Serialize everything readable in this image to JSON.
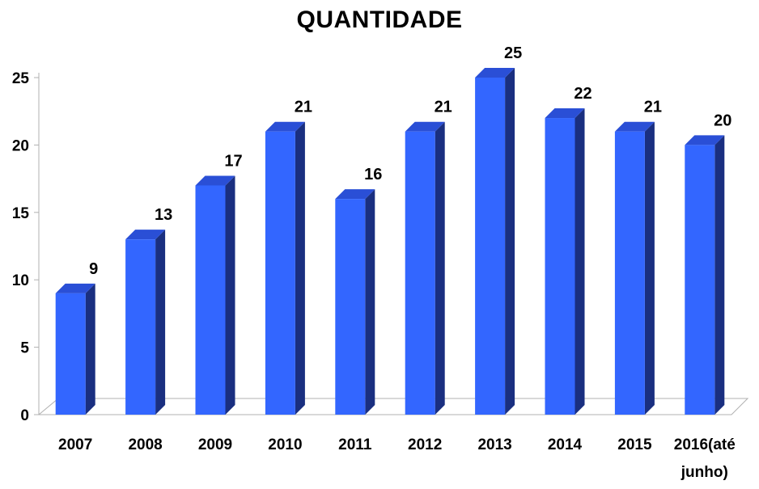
{
  "chart_data": {
    "type": "bar",
    "title": "QUANTIDADE",
    "categories": [
      "2007",
      "2008",
      "2009",
      "2010",
      "2011",
      "2012",
      "2013",
      "2014",
      "2015",
      "2016(até junho)"
    ],
    "values": [
      9,
      13,
      17,
      21,
      16,
      21,
      25,
      22,
      21,
      20
    ],
    "xlabel": "",
    "ylabel": "",
    "ylim": [
      0,
      25
    ],
    "yticks": [
      0,
      5,
      10,
      15,
      20,
      25
    ],
    "grid": false,
    "legend": "none",
    "style": "3d-column"
  },
  "colors": {
    "bar_front": "#3366ff",
    "bar_side": "#1a2f80",
    "bar_top": "#2a4fd6",
    "floor": "#ffffff",
    "axis": "#b0b0b0"
  }
}
